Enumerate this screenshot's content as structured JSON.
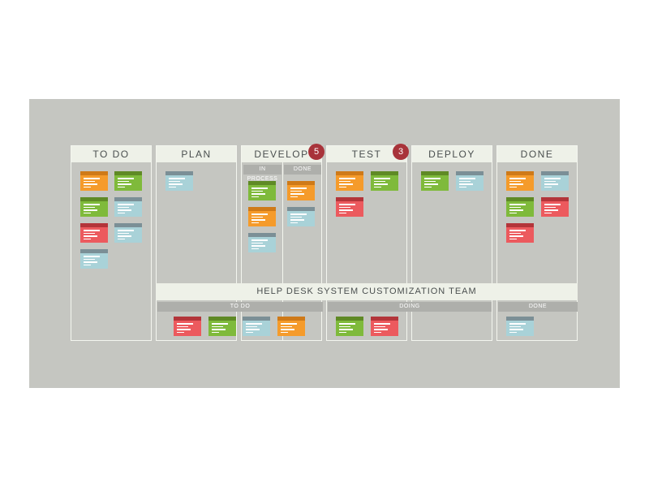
{
  "columns": [
    {
      "title": "TO DO"
    },
    {
      "title": "PLAN"
    },
    {
      "title": "DEVELOP",
      "wip": "5",
      "subcolumns": [
        "IN PROCESS",
        "DONE"
      ]
    },
    {
      "title": "TEST",
      "wip": "3"
    },
    {
      "title": "DEPLOY"
    },
    {
      "title": "DONE"
    }
  ],
  "team": {
    "title": "HELP DESK SYSTEM CUSTOMIZATION TEAM",
    "lanes": [
      "TO DO",
      "DOING",
      "DONE"
    ]
  },
  "card_colors": {
    "orange": "#f59b2b",
    "green": "#7fba3b",
    "red": "#ec5a5e",
    "blue": "#a9d2d8"
  },
  "cards": {
    "todo": [
      "orange",
      "green",
      "green",
      "blue",
      "red",
      "blue",
      "blue"
    ],
    "plan": [
      "blue"
    ],
    "develop_in_process": [
      "green",
      "orange",
      "blue"
    ],
    "develop_done": [
      "orange",
      "blue"
    ],
    "test": [
      "orange",
      "green",
      "red"
    ],
    "deploy": [
      "green",
      "blue"
    ],
    "done": [
      "orange",
      "blue",
      "green",
      "red",
      "red"
    ],
    "team_todo": [
      "red",
      "green",
      "blue",
      "orange"
    ],
    "team_doing": [
      "green",
      "red"
    ],
    "team_done": [
      "blue"
    ]
  }
}
